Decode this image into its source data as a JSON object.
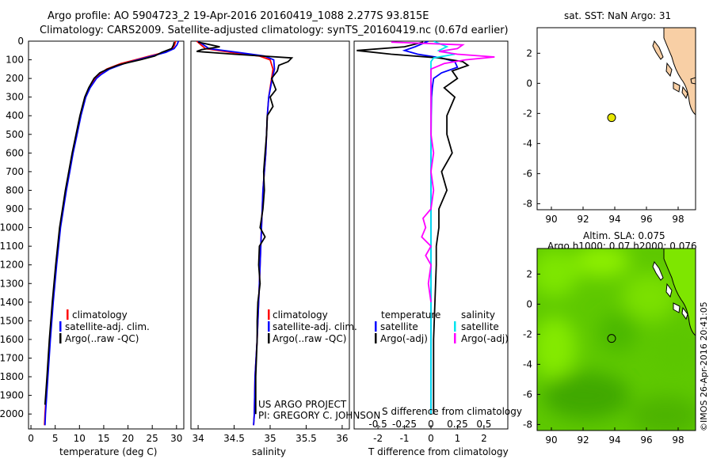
{
  "header": {
    "line1": "Argo profile: AO 5904723_2 19-Apr-2016 20160419_1088 2.277S 93.815E",
    "line2": "Climatology: CARS2009. Satellite-adjusted climatology: synTS_20160419.nc (0.67d earlier)"
  },
  "credit": "©IMOS 26-Apr-2016 20:41:05",
  "project": {
    "line1": "US ARGO PROJECT",
    "line2": "PI: GREGORY C. JOHNSON"
  },
  "colors": {
    "climatology": "#ff0000",
    "satellite": "#0000ff",
    "argo": "#000000",
    "sat_diff": "#00e5ee",
    "argo_diff": "#ff00ff",
    "land": "#f8cfa5",
    "marker": "#e6e600"
  },
  "chart_data": [
    {
      "type": "line",
      "id": "temperature",
      "xlabel": "temperature (deg C)",
      "ylabel": "",
      "xlim": [
        -0.5,
        31.5
      ],
      "ylim": [
        2080,
        0
      ],
      "y_reversed": true,
      "xticks": [
        0,
        5,
        10,
        15,
        20,
        25,
        30
      ],
      "yticks": [
        0,
        100,
        200,
        300,
        400,
        500,
        600,
        700,
        800,
        900,
        1000,
        1100,
        1200,
        1300,
        1400,
        1500,
        1600,
        1700,
        1800,
        1900,
        2000
      ],
      "legend": [
        "climatology",
        "satellite-adj. clim.",
        "Argo(..raw -QC)"
      ],
      "series": [
        {
          "name": "climatology",
          "color": "#ff0000",
          "depth": [
            0,
            20,
            40,
            60,
            80,
            100,
            120,
            150,
            180,
            200,
            250,
            300,
            400,
            500,
            600,
            700,
            800,
            900,
            1000,
            1200,
            1400,
            1600,
            1800,
            2000,
            2060
          ],
          "values": [
            29.8,
            29.6,
            29.2,
            27.5,
            24.5,
            21.5,
            18.5,
            15.6,
            14.0,
            13.2,
            12.0,
            11.2,
            10.2,
            9.4,
            8.6,
            7.9,
            7.2,
            6.6,
            6.0,
            5.2,
            4.5,
            3.9,
            3.4,
            2.9,
            2.8
          ]
        },
        {
          "name": "satellite-adj. clim.",
          "color": "#0000ff",
          "depth": [
            0,
            20,
            40,
            60,
            80,
            100,
            120,
            150,
            180,
            200,
            250,
            300,
            400,
            500,
            600,
            700,
            800,
            900,
            1000,
            1200,
            1400,
            1600,
            1800,
            2000,
            2060
          ],
          "values": [
            30.4,
            30.1,
            29.5,
            27.8,
            25.0,
            22.0,
            19.2,
            16.2,
            14.4,
            13.5,
            12.2,
            11.3,
            10.3,
            9.5,
            8.7,
            8.0,
            7.3,
            6.7,
            6.1,
            5.3,
            4.6,
            4.0,
            3.5,
            3.0,
            2.9
          ]
        },
        {
          "name": "Argo(..raw -QC)",
          "color": "#000000",
          "depth": [
            5,
            20,
            40,
            60,
            80,
            100,
            115,
            130,
            150,
            170,
            200,
            250,
            300,
            400,
            500,
            600,
            700,
            800,
            900,
            1000,
            1200,
            1400,
            1600,
            1800,
            1950
          ],
          "values": [
            29.5,
            29.4,
            29.0,
            27.0,
            25.5,
            22.5,
            20.0,
            17.8,
            15.8,
            14.2,
            13.0,
            11.9,
            11.1,
            10.1,
            9.3,
            8.5,
            7.8,
            7.1,
            6.5,
            5.9,
            5.1,
            4.4,
            3.8,
            3.3,
            2.9
          ]
        }
      ]
    },
    {
      "type": "line",
      "id": "salinity",
      "xlabel": "salinity",
      "ylabel": "",
      "xlim": [
        33.9,
        36.1
      ],
      "ylim": [
        2080,
        0
      ],
      "y_reversed": true,
      "xticks": [
        34,
        34.5,
        35,
        35.5,
        36
      ],
      "legend": [
        "climatology",
        "satellite-adj. clim.",
        "Argo(..raw -QC)"
      ],
      "series": [
        {
          "name": "climatology",
          "color": "#ff0000",
          "depth": [
            0,
            40,
            60,
            80,
            100,
            150,
            200,
            300,
            400,
            600,
            800,
            1000,
            1200,
            1400,
            1600,
            1800,
            2000,
            2060
          ],
          "values": [
            33.98,
            34.1,
            34.45,
            34.85,
            35.0,
            35.04,
            35.02,
            34.98,
            34.96,
            34.94,
            34.9,
            34.88,
            34.86,
            34.84,
            34.82,
            34.79,
            34.78,
            34.77
          ]
        },
        {
          "name": "satellite-adj. clim.",
          "color": "#0000ff",
          "depth": [
            0,
            40,
            60,
            80,
            100,
            150,
            200,
            300,
            400,
            600,
            800,
            1000,
            1200,
            1400,
            1600,
            1800,
            2000,
            2060
          ],
          "values": [
            34.0,
            34.15,
            34.55,
            34.92,
            35.05,
            35.06,
            35.03,
            34.98,
            34.96,
            34.94,
            34.9,
            34.88,
            34.86,
            34.84,
            34.82,
            34.79,
            34.78,
            34.77
          ]
        },
        {
          "name": "Argo(..raw -QC)",
          "color": "#000000",
          "depth": [
            5,
            30,
            45,
            55,
            70,
            90,
            110,
            130,
            160,
            200,
            260,
            300,
            350,
            400,
            500,
            600,
            700,
            800,
            900,
            1000,
            1050,
            1100,
            1200,
            1300,
            1400,
            1500,
            1600,
            1800,
            2000
          ],
          "values": [
            34.0,
            34.3,
            34.05,
            33.98,
            34.5,
            35.3,
            35.25,
            35.12,
            35.1,
            35.02,
            35.08,
            35.0,
            35.04,
            34.96,
            34.95,
            34.93,
            34.91,
            34.92,
            34.9,
            34.86,
            34.93,
            34.85,
            34.84,
            34.86,
            34.83,
            34.82,
            34.82,
            34.8,
            34.8
          ]
        }
      ]
    },
    {
      "type": "line",
      "id": "differences",
      "xlabel": "T difference from climatology",
      "xlabel2": "S difference from climatology",
      "xlim": [
        -2.9,
        2.9
      ],
      "ylim": [
        2080,
        0
      ],
      "y_reversed": true,
      "xticks_T": [
        -2,
        -1,
        0,
        1,
        2
      ],
      "xticks_S_labels": [
        "-0.5",
        "-0.25",
        "0",
        "0.25",
        "0.5"
      ],
      "xticks_S_pos": [
        -2,
        -1,
        0,
        1,
        2
      ],
      "legend_title_left": "temperature",
      "legend_title_right": "salinity",
      "legend": [
        "satellite",
        "Argo(-adj)",
        "satellite",
        "Argo(-adj)"
      ],
      "series": [
        {
          "name": "T satellite",
          "color": "#0000ff",
          "depth": [
            0,
            30,
            50,
            70,
            90,
            110,
            140,
            170,
            200,
            250,
            300,
            400,
            600,
            800,
            1000,
            1200,
            1500,
            1800,
            2000
          ],
          "values": [
            -0.1,
            -0.6,
            -1.0,
            -0.5,
            0.4,
            0.9,
            1.0,
            0.4,
            0.1,
            0.05,
            0.02,
            0.01,
            0,
            0,
            0,
            0,
            0,
            0,
            0
          ]
        },
        {
          "name": "T Argo(-adj)",
          "color": "#000000",
          "depth": [
            5,
            30,
            50,
            70,
            90,
            110,
            130,
            160,
            200,
            250,
            300,
            400,
            500,
            600,
            700,
            800,
            900,
            1000,
            1100,
            1200,
            1400,
            1600,
            1800,
            2000
          ],
          "values": [
            -0.3,
            -1.0,
            -2.8,
            -1.5,
            0.3,
            1.2,
            1.4,
            0.8,
            1.0,
            0.5,
            0.9,
            0.6,
            0.6,
            0.8,
            0.4,
            0.6,
            0.3,
            0.3,
            0.2,
            0.2,
            0.15,
            0.1,
            0.1,
            0.1
          ]
        },
        {
          "name": "S satellite",
          "color": "#00e5ee",
          "depth": [
            0,
            30,
            50,
            70,
            90,
            110,
            140,
            200,
            300,
            500,
            800,
            1000,
            1200,
            1500,
            1800,
            2000
          ],
          "values": [
            0.1,
            0.6,
            0.3,
            0.9,
            0.1,
            0.0,
            0.0,
            0.0,
            0.0,
            0.0,
            0.0,
            0.0,
            0.0,
            0.0,
            0.0,
            0.0
          ]
        },
        {
          "name": "S Argo(-adj)",
          "color": "#ff00ff",
          "depth": [
            5,
            20,
            40,
            55,
            70,
            85,
            100,
            120,
            150,
            200,
            300,
            500,
            600,
            700,
            800,
            900,
            950,
            1000,
            1050,
            1100,
            1150,
            1200,
            1300,
            1400
          ],
          "values": [
            -1.5,
            1.2,
            1.0,
            0.3,
            1.0,
            2.4,
            1.3,
            0.5,
            0.0,
            0.0,
            0.0,
            0.0,
            0.1,
            0.0,
            0.1,
            0.0,
            -0.3,
            -0.2,
            -0.35,
            0.0,
            -0.2,
            0.0,
            -0.1,
            0.0
          ]
        }
      ]
    },
    {
      "type": "scatter",
      "id": "sst_map",
      "title": "sat. SST: NaN Argo: 31",
      "xlim": [
        89.1,
        99.1
      ],
      "ylim": [
        -8.4,
        3.7
      ],
      "xticks": [
        90,
        92,
        94,
        96,
        98
      ],
      "yticks": [
        -8,
        -6,
        -4,
        -2,
        0,
        2
      ],
      "points": [
        {
          "lon": 93.8,
          "lat": -2.28
        }
      ]
    },
    {
      "type": "heatmap",
      "id": "sla_map",
      "title_line1": "Altim. SLA: 0.075",
      "title_line2": "Argo h1000: 0.07 h2000: 0.076",
      "xlim": [
        89.1,
        99.1
      ],
      "ylim": [
        -8.4,
        3.7
      ],
      "xticks": [
        90,
        92,
        94,
        96,
        98
      ],
      "yticks": [
        -8,
        -6,
        -4,
        -2,
        0,
        2
      ],
      "points": [
        {
          "lon": 93.8,
          "lat": -2.28
        }
      ]
    }
  ]
}
